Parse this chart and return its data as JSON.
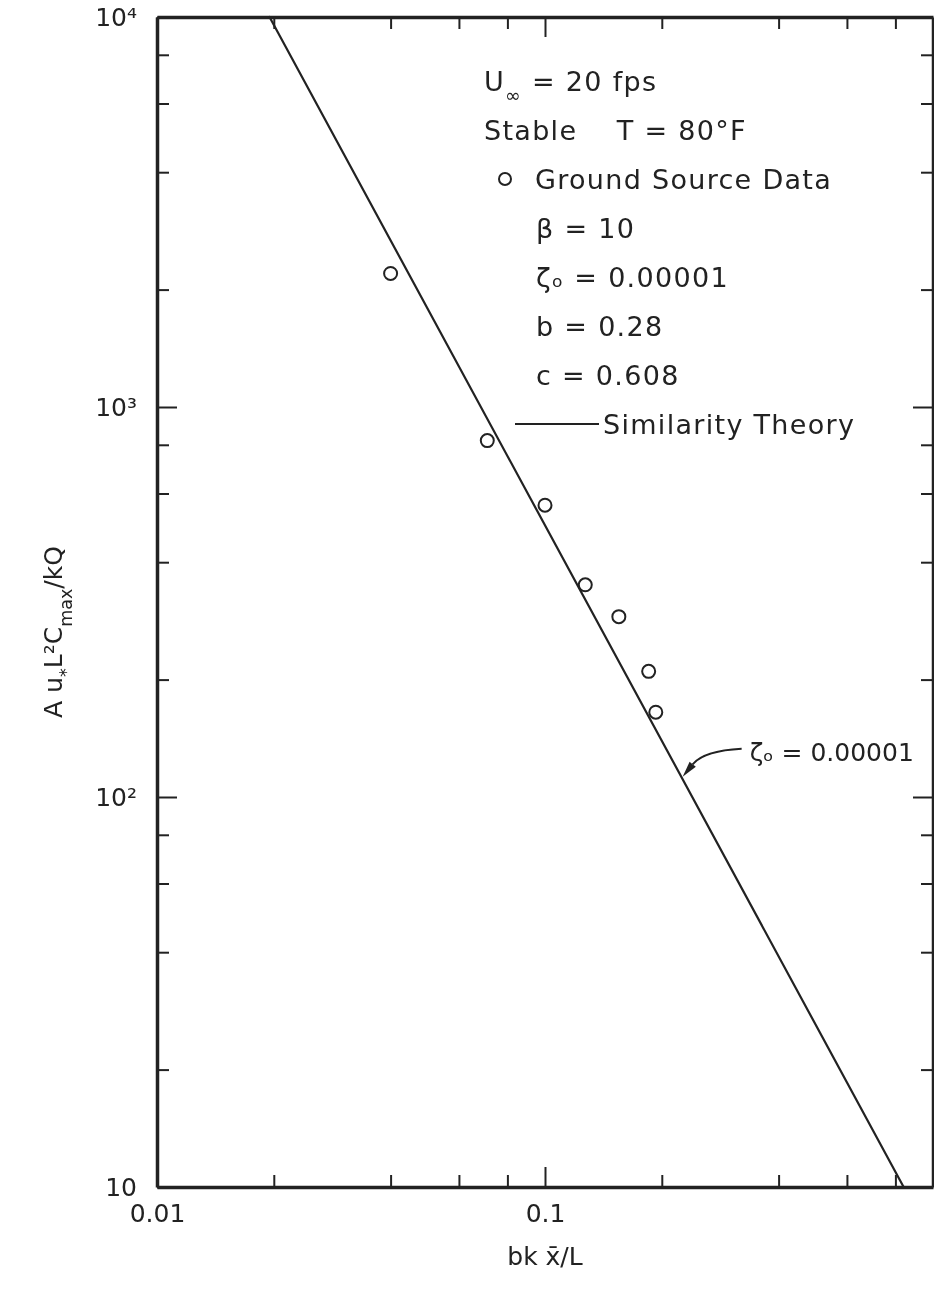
{
  "chart_data": {
    "type": "scatter",
    "xlabel": "bk x̄/L",
    "ylabel": "A u$_{*}$L²C$_{max}$/kQ",
    "log": "xy",
    "xlim": [
      0.01,
      1
    ],
    "ylim": [
      10,
      10000
    ],
    "xticks": [
      0.01,
      {
        "value": 0.02,
        "label": null
      },
      {
        "value": 0.04,
        "label": null
      },
      {
        "value": 0.06,
        "label": null
      },
      {
        "value": 0.08,
        "label": null
      },
      0.1,
      {
        "value": 0.2,
        "label": null
      },
      {
        "value": 0.4,
        "label": null
      },
      {
        "value": 0.6,
        "label": null
      },
      {
        "value": 0.8,
        "label": null
      }
    ],
    "yticks": [
      10,
      {
        "value": 20,
        "label": null
      },
      {
        "value": 40,
        "label": null
      },
      {
        "value": 60,
        "label": null
      },
      {
        "value": 80,
        "label": null
      },
      {
        "value": 100,
        "label": "10²"
      },
      {
        "value": 200,
        "label": null
      },
      {
        "value": 400,
        "label": null
      },
      {
        "value": 600,
        "label": null
      },
      {
        "value": 800,
        "label": null
      },
      {
        "value": 1000,
        "label": "10³"
      },
      {
        "value": 2000,
        "label": null
      },
      {
        "value": 4000,
        "label": null
      },
      {
        "value": 6000,
        "label": null
      },
      {
        "value": 8000,
        "label": null
      },
      {
        "value": 10000,
        "label": "10⁴"
      }
    ],
    "series": [
      {
        "name": "Ground Source Data",
        "color": "#222222",
        "marker": "circle",
        "x": [
          0.04,
          0.071,
          0.1,
          0.127,
          0.155,
          0.185,
          0.193
        ],
        "values": [
          2200,
          820,
          560,
          350,
          290,
          210,
          165
        ]
      },
      {
        "name": "Similarity Theory",
        "type": "line",
        "color": "#222222",
        "line_style": "solid",
        "x": [
          0.0195,
          0.84
        ],
        "values": [
          10000,
          10
        ]
      }
    ],
    "legend": "top right",
    "annotations": [
      "U$_{∞}$ = 20 fps",
      "Stable    T = 80°F",
      "β = 10",
      "ζₒ = 0.00001",
      "b = 0.28",
      "c = 0.608",
      {
        "text": "ζₒ = 0.00001",
        "x": 0.225,
        "y": 112
      }
    ]
  }
}
